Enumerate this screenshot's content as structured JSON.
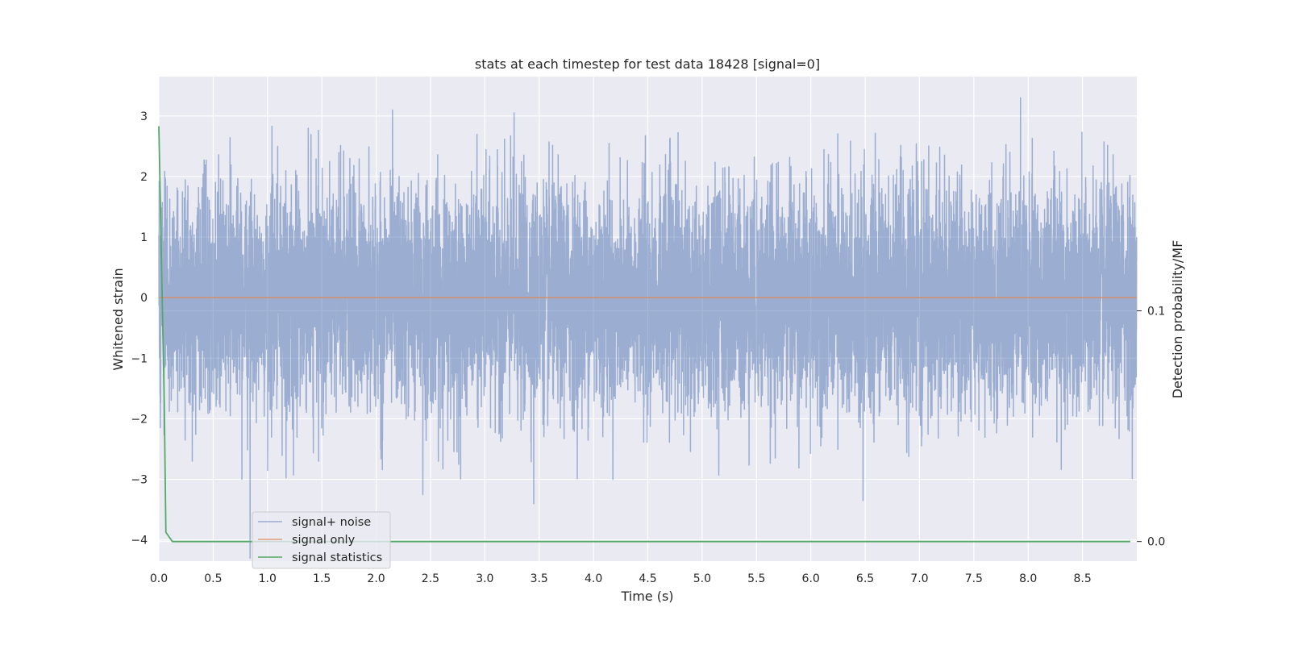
{
  "chart_data": {
    "type": "line",
    "title": "stats at each timestep for test data 18428 [signal=0]",
    "xlabel": "Time (s)",
    "ylabel": "Whitened strain",
    "y2label": "Detection probability/MF",
    "xlim": [
      0.0,
      9.0
    ],
    "ylim": [
      -4.35,
      3.65
    ],
    "y2lim": [
      -0.0085,
      0.2015
    ],
    "xticks": [
      "0.0",
      "0.5",
      "1.0",
      "1.5",
      "2.0",
      "2.5",
      "3.0",
      "3.5",
      "4.0",
      "4.5",
      "5.0",
      "5.5",
      "6.0",
      "6.5",
      "7.0",
      "7.5",
      "8.0",
      "8.5"
    ],
    "yticks": [
      "3",
      "2",
      "1",
      "0",
      "−1",
      "−2",
      "−3",
      "−4"
    ],
    "y2ticks": [
      "0.1",
      "0.0"
    ],
    "grid": true,
    "legend_position": "lower left",
    "colors": {
      "background": "#eaeaf2",
      "grid": "#ffffff",
      "signal_noise": "#4c72b0",
      "signal_only": "#dd8452",
      "signal_statistics": "#55a868"
    },
    "series": [
      {
        "name": "signal+ noise",
        "axis": "left",
        "kind": "noise",
        "sample_rate_hz": 1024,
        "duration_s": 9.0,
        "std": 0.9,
        "notable_peaks": [
          {
            "x": 2.15,
            "y": 3.1
          },
          {
            "x": 3.27,
            "y": 3.05
          },
          {
            "x": 7.93,
            "y": 3.3
          },
          {
            "x": 0.84,
            "y": -4.3
          },
          {
            "x": 3.45,
            "y": -3.4
          },
          {
            "x": 6.48,
            "y": -3.35
          },
          {
            "x": 2.43,
            "y": -3.25
          }
        ]
      },
      {
        "name": "signal only",
        "axis": "left",
        "x": [
          0.0,
          9.0
        ],
        "y": [
          0.0,
          0.0
        ]
      },
      {
        "name": "signal statistics",
        "axis": "right",
        "x": [
          0.0,
          0.05,
          0.065,
          0.125,
          1.0,
          2.0,
          3.0,
          4.0,
          5.0,
          6.0,
          7.0,
          8.0,
          8.94
        ],
        "y": [
          0.18,
          0.06,
          0.004,
          0.0,
          0.0,
          0.0,
          0.0,
          0.0,
          0.0,
          0.0,
          0.0,
          0.0,
          0.0
        ]
      }
    ]
  }
}
